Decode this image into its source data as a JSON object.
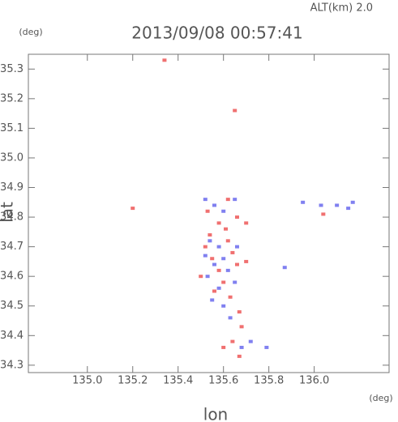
{
  "chart_data": {
    "type": "scatter",
    "title": "2013/09/08 00:57:41",
    "subtitle": "ALT(km) 2.0",
    "y_unit": "(deg)",
    "x_unit": "(deg)",
    "x_label": "lon",
    "y_label": "lat",
    "xlim": [
      134.74,
      136.33
    ],
    "ylim": [
      34.275,
      35.35
    ],
    "xticks": [
      {
        "value": 135.0,
        "label": "135.0"
      },
      135.2,
      135.4,
      135.6,
      135.8,
      {
        "value": 136.0,
        "label": "136.0"
      }
    ],
    "yticks": [
      34.3,
      34.4,
      34.5,
      34.6,
      34.7,
      34.8,
      34.9,
      {
        "value": 35.0,
        "label": "35.0"
      },
      35.1,
      35.2,
      35.3
    ],
    "series": [
      {
        "color": "#f07070",
        "x": [
          135.34,
          135.65,
          135.2,
          135.53,
          135.58,
          135.61,
          135.66,
          135.7,
          135.52,
          135.55,
          135.58,
          135.62,
          135.64,
          135.6,
          135.56,
          135.63,
          135.67,
          135.68,
          135.64,
          135.6,
          135.67,
          136.04,
          135.5,
          135.66,
          135.54,
          135.62,
          135.7
        ],
        "y": [
          35.33,
          35.16,
          34.83,
          34.82,
          34.78,
          34.76,
          34.8,
          34.78,
          34.7,
          34.66,
          34.62,
          34.72,
          34.68,
          34.58,
          34.55,
          34.53,
          34.48,
          34.43,
          34.38,
          34.36,
          34.33,
          34.81,
          34.6,
          34.64,
          34.74,
          34.86,
          34.65
        ]
      },
      {
        "color": "#8080f0",
        "x": [
          135.52,
          135.56,
          135.6,
          135.65,
          135.54,
          135.58,
          135.56,
          135.6,
          135.62,
          135.53,
          135.58,
          135.65,
          135.6,
          135.55,
          135.63,
          135.87,
          135.79,
          135.72,
          135.95,
          136.03,
          136.1,
          136.17,
          136.15,
          135.68,
          135.52,
          135.66
        ],
        "y": [
          34.86,
          34.84,
          34.82,
          34.86,
          34.72,
          34.7,
          34.64,
          34.66,
          34.62,
          34.6,
          34.56,
          34.58,
          34.5,
          34.52,
          34.46,
          34.63,
          34.36,
          34.38,
          34.85,
          34.84,
          34.84,
          34.85,
          34.83,
          34.36,
          34.67,
          34.7
        ]
      }
    ]
  }
}
